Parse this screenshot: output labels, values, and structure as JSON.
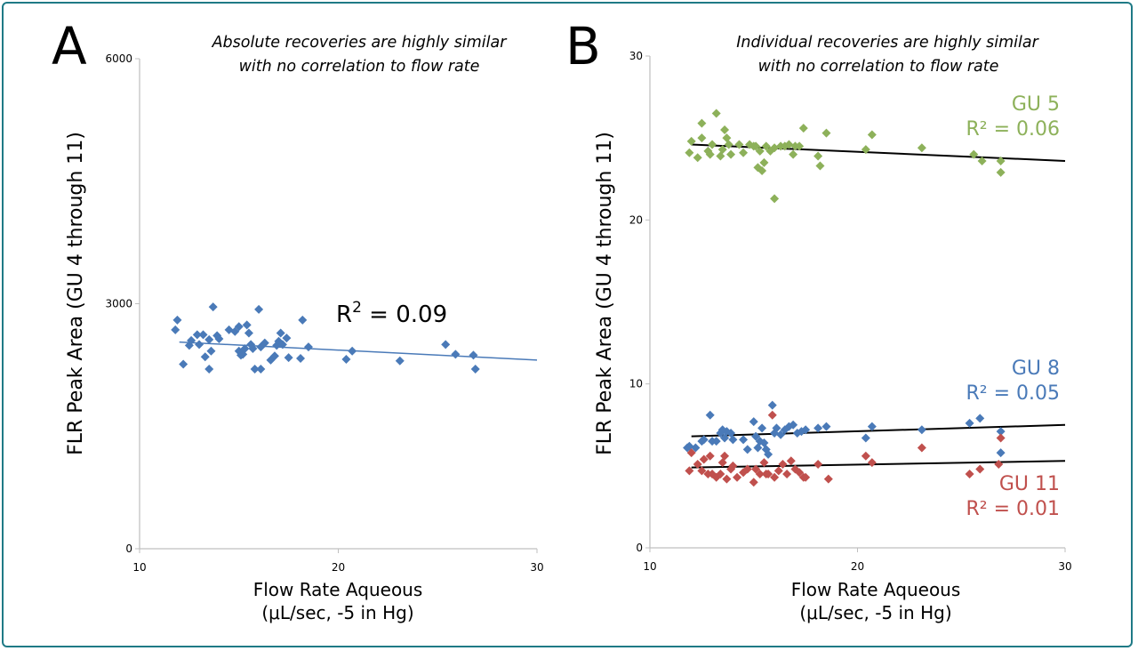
{
  "colors": {
    "frame": "#1f7a86",
    "blue": "#4a7ab8",
    "green": "#8db15a",
    "red": "#c0504d",
    "trend": "#000000",
    "axis": "#bfbfbf"
  },
  "chart_data": [
    {
      "type": "scatter",
      "panel_letter": "A",
      "title": "Absolute recoveries are highly similar with no correlation to flow rate",
      "title_lines": [
        "Absolute recoveries are highly similar",
        "with no correlation to flow rate"
      ],
      "xlabel_lines": [
        "Flow Rate Aqueous",
        "(μL/sec, -5 in Hg)"
      ],
      "ylabel": "FLR Peak Area (GU 4 through 11)",
      "xlim": [
        10,
        30
      ],
      "ylim": [
        0,
        6000
      ],
      "x_ticks": [
        "10",
        "20",
        "30"
      ],
      "y_ticks": [
        "0",
        "3000",
        "6000"
      ],
      "annotation": {
        "base": "R",
        "sup": "2",
        "rest": " = 0.09"
      },
      "series": [
        {
          "color": "#4a7ab8",
          "trend": [
            [
              12,
              2530
            ],
            [
              30,
              2310
            ]
          ],
          "points": [
            [
              11.8,
              2680
            ],
            [
              11.9,
              2800
            ],
            [
              12.2,
              2260
            ],
            [
              12.5,
              2490
            ],
            [
              12.6,
              2550
            ],
            [
              12.9,
              2620
            ],
            [
              13.0,
              2500
            ],
            [
              13.2,
              2620
            ],
            [
              13.3,
              2350
            ],
            [
              13.5,
              2200
            ],
            [
              13.5,
              2560
            ],
            [
              13.6,
              2420
            ],
            [
              13.7,
              2960
            ],
            [
              13.9,
              2610
            ],
            [
              14.0,
              2570
            ],
            [
              14.5,
              2680
            ],
            [
              14.8,
              2660
            ],
            [
              15.0,
              2720
            ],
            [
              15.0,
              2420
            ],
            [
              15.1,
              2370
            ],
            [
              15.2,
              2380
            ],
            [
              15.3,
              2450
            ],
            [
              15.4,
              2740
            ],
            [
              15.5,
              2640
            ],
            [
              15.6,
              2500
            ],
            [
              15.7,
              2450
            ],
            [
              15.8,
              2200
            ],
            [
              16.0,
              2930
            ],
            [
              16.1,
              2200
            ],
            [
              16.1,
              2470
            ],
            [
              16.3,
              2520
            ],
            [
              16.6,
              2310
            ],
            [
              16.8,
              2360
            ],
            [
              16.9,
              2490
            ],
            [
              17.0,
              2540
            ],
            [
              17.1,
              2640
            ],
            [
              17.2,
              2500
            ],
            [
              17.4,
              2580
            ],
            [
              17.5,
              2340
            ],
            [
              18.1,
              2330
            ],
            [
              18.2,
              2800
            ],
            [
              18.5,
              2470
            ],
            [
              20.4,
              2320
            ],
            [
              20.7,
              2420
            ],
            [
              23.1,
              2300
            ],
            [
              25.4,
              2500
            ],
            [
              25.9,
              2380
            ],
            [
              26.8,
              2370
            ],
            [
              26.9,
              2200
            ]
          ]
        }
      ]
    },
    {
      "type": "scatter",
      "panel_letter": "B",
      "title": "Individual recoveries are highly similar with no correlation to flow rate",
      "title_lines": [
        "Individual recoveries are highly similar",
        "with no correlation to flow rate"
      ],
      "xlabel_lines": [
        "Flow Rate Aqueous",
        "(μL/sec, -5 in Hg)"
      ],
      "ylabel": "FLR Peak Area (GU 4 through 11)",
      "xlim": [
        10,
        30
      ],
      "ylim": [
        0,
        30
      ],
      "x_ticks": [
        "10",
        "20",
        "30"
      ],
      "y_ticks": [
        "0",
        "10",
        "20",
        "30"
      ],
      "series": [
        {
          "name": "GU 5",
          "r2_label": "R² = 0.06",
          "color": "#8db15a",
          "trend": [
            [
              12,
              24.6
            ],
            [
              30,
              23.6
            ]
          ],
          "points": [
            [
              11.9,
              24.1
            ],
            [
              12.0,
              24.8
            ],
            [
              12.3,
              23.8
            ],
            [
              12.5,
              25.0
            ],
            [
              12.5,
              25.9
            ],
            [
              12.8,
              24.2
            ],
            [
              12.9,
              24.0
            ],
            [
              13.0,
              24.6
            ],
            [
              13.2,
              26.5
            ],
            [
              13.4,
              23.9
            ],
            [
              13.5,
              24.3
            ],
            [
              13.6,
              25.5
            ],
            [
              13.7,
              25.0
            ],
            [
              13.8,
              24.6
            ],
            [
              13.9,
              24.0
            ],
            [
              14.3,
              24.6
            ],
            [
              14.5,
              24.1
            ],
            [
              14.8,
              24.6
            ],
            [
              15.0,
              24.5
            ],
            [
              15.1,
              24.5
            ],
            [
              15.2,
              23.2
            ],
            [
              15.3,
              24.2
            ],
            [
              15.4,
              23.0
            ],
            [
              15.5,
              23.5
            ],
            [
              15.6,
              24.5
            ],
            [
              15.8,
              24.2
            ],
            [
              16.0,
              21.3
            ],
            [
              16.0,
              24.4
            ],
            [
              16.3,
              24.5
            ],
            [
              16.5,
              24.5
            ],
            [
              16.7,
              24.6
            ],
            [
              16.9,
              24.0
            ],
            [
              17.0,
              24.5
            ],
            [
              17.2,
              24.5
            ],
            [
              17.4,
              25.6
            ],
            [
              18.1,
              23.9
            ],
            [
              18.2,
              23.3
            ],
            [
              18.5,
              25.3
            ],
            [
              20.4,
              24.3
            ],
            [
              20.7,
              25.2
            ],
            [
              23.1,
              24.4
            ],
            [
              25.6,
              24.0
            ],
            [
              26.0,
              23.6
            ],
            [
              26.9,
              23.6
            ],
            [
              26.9,
              22.9
            ]
          ]
        },
        {
          "name": "GU 8",
          "r2_label": "R² = 0.05",
          "color": "#4a7ab8",
          "trend": [
            [
              12,
              6.8
            ],
            [
              30,
              7.5
            ]
          ],
          "points": [
            [
              11.8,
              6.1
            ],
            [
              11.9,
              6.2
            ],
            [
              12.2,
              6.1
            ],
            [
              12.5,
              6.5
            ],
            [
              12.6,
              6.6
            ],
            [
              12.9,
              8.1
            ],
            [
              13.0,
              6.5
            ],
            [
              13.2,
              6.5
            ],
            [
              13.4,
              7.0
            ],
            [
              13.5,
              7.2
            ],
            [
              13.6,
              6.7
            ],
            [
              13.7,
              7.1
            ],
            [
              13.9,
              7.0
            ],
            [
              14.0,
              6.6
            ],
            [
              14.5,
              6.6
            ],
            [
              14.7,
              6.0
            ],
            [
              15.0,
              7.7
            ],
            [
              15.1,
              6.8
            ],
            [
              15.2,
              6.1
            ],
            [
              15.3,
              6.5
            ],
            [
              15.4,
              7.3
            ],
            [
              15.5,
              6.4
            ],
            [
              15.6,
              6.0
            ],
            [
              15.7,
              5.7
            ],
            [
              15.9,
              8.7
            ],
            [
              16.0,
              7.0
            ],
            [
              16.1,
              7.3
            ],
            [
              16.3,
              6.9
            ],
            [
              16.5,
              7.2
            ],
            [
              16.7,
              7.4
            ],
            [
              16.9,
              7.5
            ],
            [
              17.1,
              7.0
            ],
            [
              17.3,
              7.1
            ],
            [
              17.5,
              7.2
            ],
            [
              18.1,
              7.3
            ],
            [
              18.5,
              7.4
            ],
            [
              20.4,
              6.7
            ],
            [
              20.7,
              7.4
            ],
            [
              23.1,
              7.2
            ],
            [
              25.4,
              7.6
            ],
            [
              25.9,
              7.9
            ],
            [
              26.9,
              7.1
            ],
            [
              26.9,
              5.8
            ]
          ]
        },
        {
          "name": "GU 11",
          "r2_label": "R² = 0.01",
          "color": "#c0504d",
          "trend": [
            [
              12,
              4.9
            ],
            [
              30,
              5.3
            ]
          ],
          "points": [
            [
              11.9,
              4.7
            ],
            [
              12.0,
              5.8
            ],
            [
              12.3,
              5.1
            ],
            [
              12.5,
              4.7
            ],
            [
              12.6,
              5.4
            ],
            [
              12.8,
              4.5
            ],
            [
              12.9,
              5.6
            ],
            [
              13.0,
              4.5
            ],
            [
              13.2,
              4.3
            ],
            [
              13.4,
              4.5
            ],
            [
              13.5,
              5.2
            ],
            [
              13.6,
              5.6
            ],
            [
              13.7,
              4.2
            ],
            [
              13.9,
              4.8
            ],
            [
              14.0,
              5.0
            ],
            [
              14.2,
              4.3
            ],
            [
              14.5,
              4.6
            ],
            [
              14.7,
              4.8
            ],
            [
              15.0,
              4.0
            ],
            [
              15.1,
              4.8
            ],
            [
              15.3,
              4.5
            ],
            [
              15.5,
              5.2
            ],
            [
              15.6,
              4.5
            ],
            [
              15.7,
              4.5
            ],
            [
              15.9,
              8.1
            ],
            [
              16.0,
              4.3
            ],
            [
              16.2,
              4.7
            ],
            [
              16.4,
              5.1
            ],
            [
              16.6,
              4.5
            ],
            [
              16.8,
              5.3
            ],
            [
              17.0,
              4.8
            ],
            [
              17.2,
              4.6
            ],
            [
              17.4,
              4.3
            ],
            [
              17.5,
              4.3
            ],
            [
              18.1,
              5.1
            ],
            [
              18.6,
              4.2
            ],
            [
              20.4,
              5.6
            ],
            [
              20.7,
              5.2
            ],
            [
              23.1,
              6.1
            ],
            [
              25.4,
              4.5
            ],
            [
              25.9,
              4.8
            ],
            [
              26.8,
              5.1
            ],
            [
              26.9,
              6.7
            ]
          ]
        }
      ]
    }
  ]
}
